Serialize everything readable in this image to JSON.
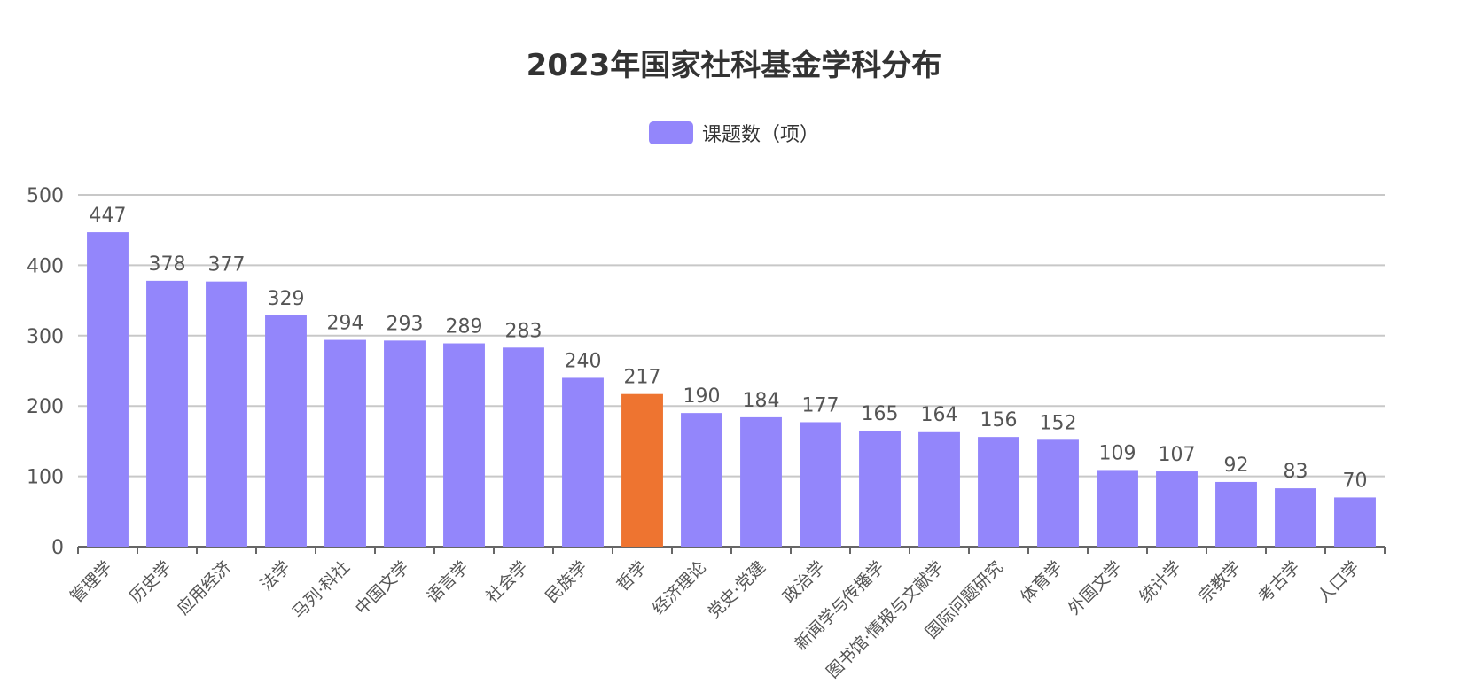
{
  "chart_data": {
    "type": "bar",
    "title": "2023年国家社科基金学科分布",
    "legend": {
      "label": "课题数（项）",
      "position": "top-center"
    },
    "xlabel": "",
    "ylabel": "",
    "ylim": [
      0,
      500
    ],
    "y_ticks": [
      "0",
      "100",
      "200",
      "300",
      "400",
      "500"
    ],
    "grid": true,
    "categories": [
      "管理学",
      "历史学",
      "应用经济",
      "法学",
      "马列·科社",
      "中国文学",
      "语言学",
      "社会学",
      "民族学",
      "哲学",
      "经济理论",
      "党史·党建",
      "政治学",
      "新闻学与传播学",
      "图书馆·情报与文献学",
      "国际问题研究",
      "体育学",
      "外国文学",
      "统计学",
      "宗教学",
      "考古学",
      "人口学"
    ],
    "series": [
      {
        "name": "课题数（项）",
        "values": [
          447,
          378,
          377,
          329,
          294,
          293,
          289,
          283,
          240,
          217,
          190,
          184,
          177,
          165,
          164,
          156,
          152,
          109,
          107,
          92,
          83,
          70
        ]
      }
    ],
    "highlight_category": "哲学",
    "colors": {
      "bar": "#9386fb",
      "highlight": "#ee7430",
      "grid": "#c8c8c8",
      "axis": "#666666",
      "text": "#555555"
    }
  }
}
